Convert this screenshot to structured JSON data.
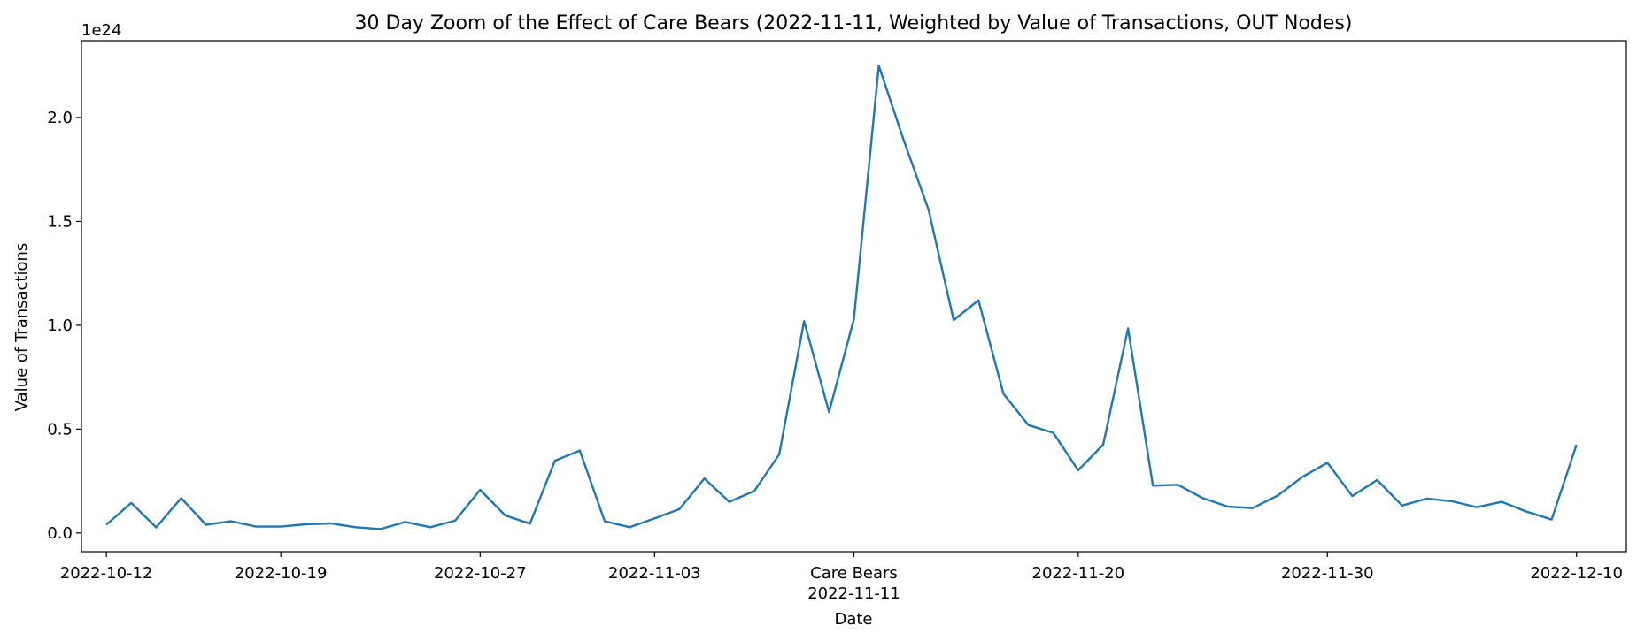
{
  "chart_data": {
    "type": "line",
    "title": "30 Day Zoom of the Effect of Care Bears (2022-11-11, Weighted by Value of Transactions, OUT Nodes)",
    "xlabel": "Date",
    "ylabel": "Value of Transactions",
    "y_offset_label": "1e24",
    "y_scale": 1e+24,
    "ylim": [
      -0.09,
      2.37
    ],
    "xlim": [
      "2022-10-11",
      "2022-12-12"
    ],
    "grid": false,
    "line_color": "#1f77b4",
    "x_ticks": [
      {
        "date": "2022-10-12",
        "label": "2022-10-12"
      },
      {
        "date": "2022-10-19",
        "label": "2022-10-19"
      },
      {
        "date": "2022-10-27",
        "label": "2022-10-27"
      },
      {
        "date": "2022-11-03",
        "label": "2022-11-03"
      },
      {
        "date": "2022-11-11",
        "label": "Care Bears",
        "sublabel": "2022-11-11"
      },
      {
        "date": "2022-11-20",
        "label": "2022-11-20"
      },
      {
        "date": "2022-11-30",
        "label": "2022-11-30"
      },
      {
        "date": "2022-12-10",
        "label": "2022-12-10"
      }
    ],
    "y_ticks": [
      {
        "value": 0.0,
        "label": "0.0"
      },
      {
        "value": 0.5,
        "label": "0.5"
      },
      {
        "value": 1.0,
        "label": "1.0"
      },
      {
        "value": 1.5,
        "label": "1.5"
      },
      {
        "value": 2.0,
        "label": "2.0"
      }
    ],
    "series": [
      {
        "x": [
          "2022-10-12",
          "2022-10-13",
          "2022-10-14",
          "2022-10-15",
          "2022-10-16",
          "2022-10-17",
          "2022-10-18",
          "2022-10-19",
          "2022-10-20",
          "2022-10-21",
          "2022-10-22",
          "2022-10-23",
          "2022-10-24",
          "2022-10-25",
          "2022-10-26",
          "2022-10-27",
          "2022-10-28",
          "2022-10-29",
          "2022-10-30",
          "2022-10-31",
          "2022-11-01",
          "2022-11-02",
          "2022-11-03",
          "2022-11-04",
          "2022-11-05",
          "2022-11-06",
          "2022-11-07",
          "2022-11-08",
          "2022-11-09",
          "2022-11-10",
          "2022-11-11",
          "2022-11-12",
          "2022-11-13",
          "2022-11-14",
          "2022-11-15",
          "2022-11-16",
          "2022-11-17",
          "2022-11-18",
          "2022-11-19",
          "2022-11-20",
          "2022-11-21",
          "2022-11-22",
          "2022-11-23",
          "2022-11-24",
          "2022-11-25",
          "2022-11-26",
          "2022-11-27",
          "2022-11-28",
          "2022-11-29",
          "2022-11-30",
          "2022-12-01",
          "2022-12-02",
          "2022-12-03",
          "2022-12-04",
          "2022-12-05",
          "2022-12-06",
          "2022-12-07",
          "2022-12-08",
          "2022-12-09",
          "2022-12-10"
        ],
        "y": [
          0.04,
          0.145,
          0.027,
          0.168,
          0.04,
          0.057,
          0.031,
          0.031,
          0.042,
          0.046,
          0.028,
          0.019,
          0.053,
          0.028,
          0.06,
          0.208,
          0.085,
          0.045,
          0.348,
          0.397,
          0.057,
          0.028,
          0.07,
          0.115,
          0.262,
          0.15,
          0.202,
          0.378,
          1.02,
          0.582,
          1.03,
          2.25,
          1.89,
          1.555,
          1.025,
          1.12,
          0.67,
          0.52,
          0.482,
          0.302,
          0.425,
          0.985,
          0.228,
          0.232,
          0.168,
          0.127,
          0.12,
          0.18,
          0.27,
          0.338,
          0.178,
          0.255,
          0.132,
          0.166,
          0.153,
          0.124,
          0.15,
          0.103,
          0.065,
          0.425
        ]
      }
    ]
  }
}
